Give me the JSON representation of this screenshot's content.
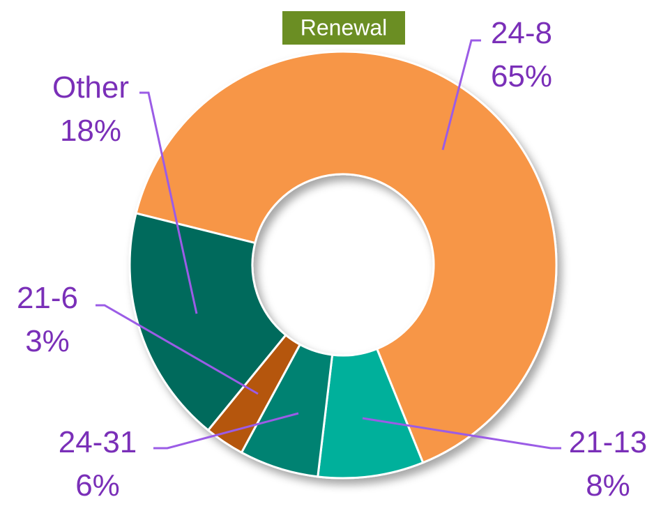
{
  "chart_data": {
    "type": "pie",
    "title": "Renewal",
    "donut": true,
    "categories": [
      "24-8",
      "21-13",
      "24-31",
      "21-6",
      "Other"
    ],
    "values": [
      65,
      8,
      6,
      3,
      18
    ],
    "value_labels": [
      "65%",
      "8%",
      "6%",
      "3%",
      "18%"
    ],
    "colors": [
      "#F79646",
      "#00B09B",
      "#008272",
      "#B5560A",
      "#006B5C"
    ]
  }
}
